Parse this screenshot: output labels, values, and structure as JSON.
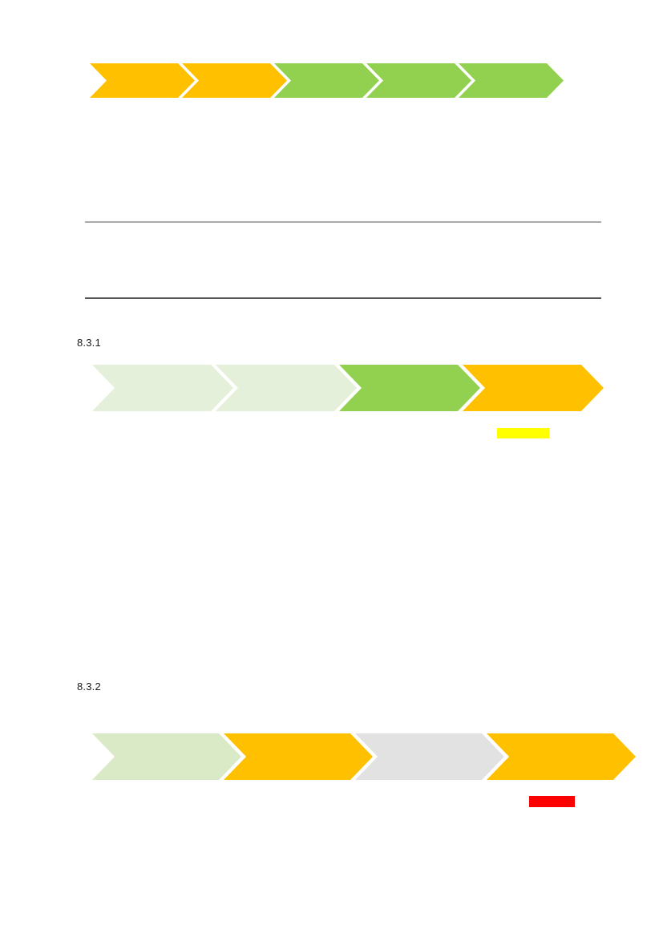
{
  "document": {
    "headings": [
      {
        "id": "h-831",
        "text": "8.3.1"
      },
      {
        "id": "h-832",
        "text": "8.3.2"
      }
    ],
    "rules": [
      {
        "id": "rule-top",
        "color": "#ABABAB"
      },
      {
        "id": "rule-bottom",
        "color": "#565656"
      }
    ]
  },
  "palette": {
    "orange": "#FFC000",
    "green": "#92D050",
    "pale_green_light": "#E4F0D9",
    "pale_green": "#DAE9C6",
    "gray": "#E2E2E2",
    "yellow": "#FFFF00",
    "red": "#FF0000"
  },
  "process_bars": [
    {
      "id": "bar-top",
      "segments": [
        "orange",
        "orange",
        "green",
        "green",
        "green"
      ]
    },
    {
      "id": "bar-831",
      "segments": [
        "pale_green_light",
        "pale_green_light",
        "green",
        "orange"
      ]
    },
    {
      "id": "bar-832",
      "segments": [
        "pale_green",
        "orange",
        "gray",
        "orange"
      ]
    }
  ],
  "highlights": [
    {
      "id": "highlight-yellow",
      "color": "yellow"
    },
    {
      "id": "highlight-red",
      "color": "red"
    }
  ]
}
